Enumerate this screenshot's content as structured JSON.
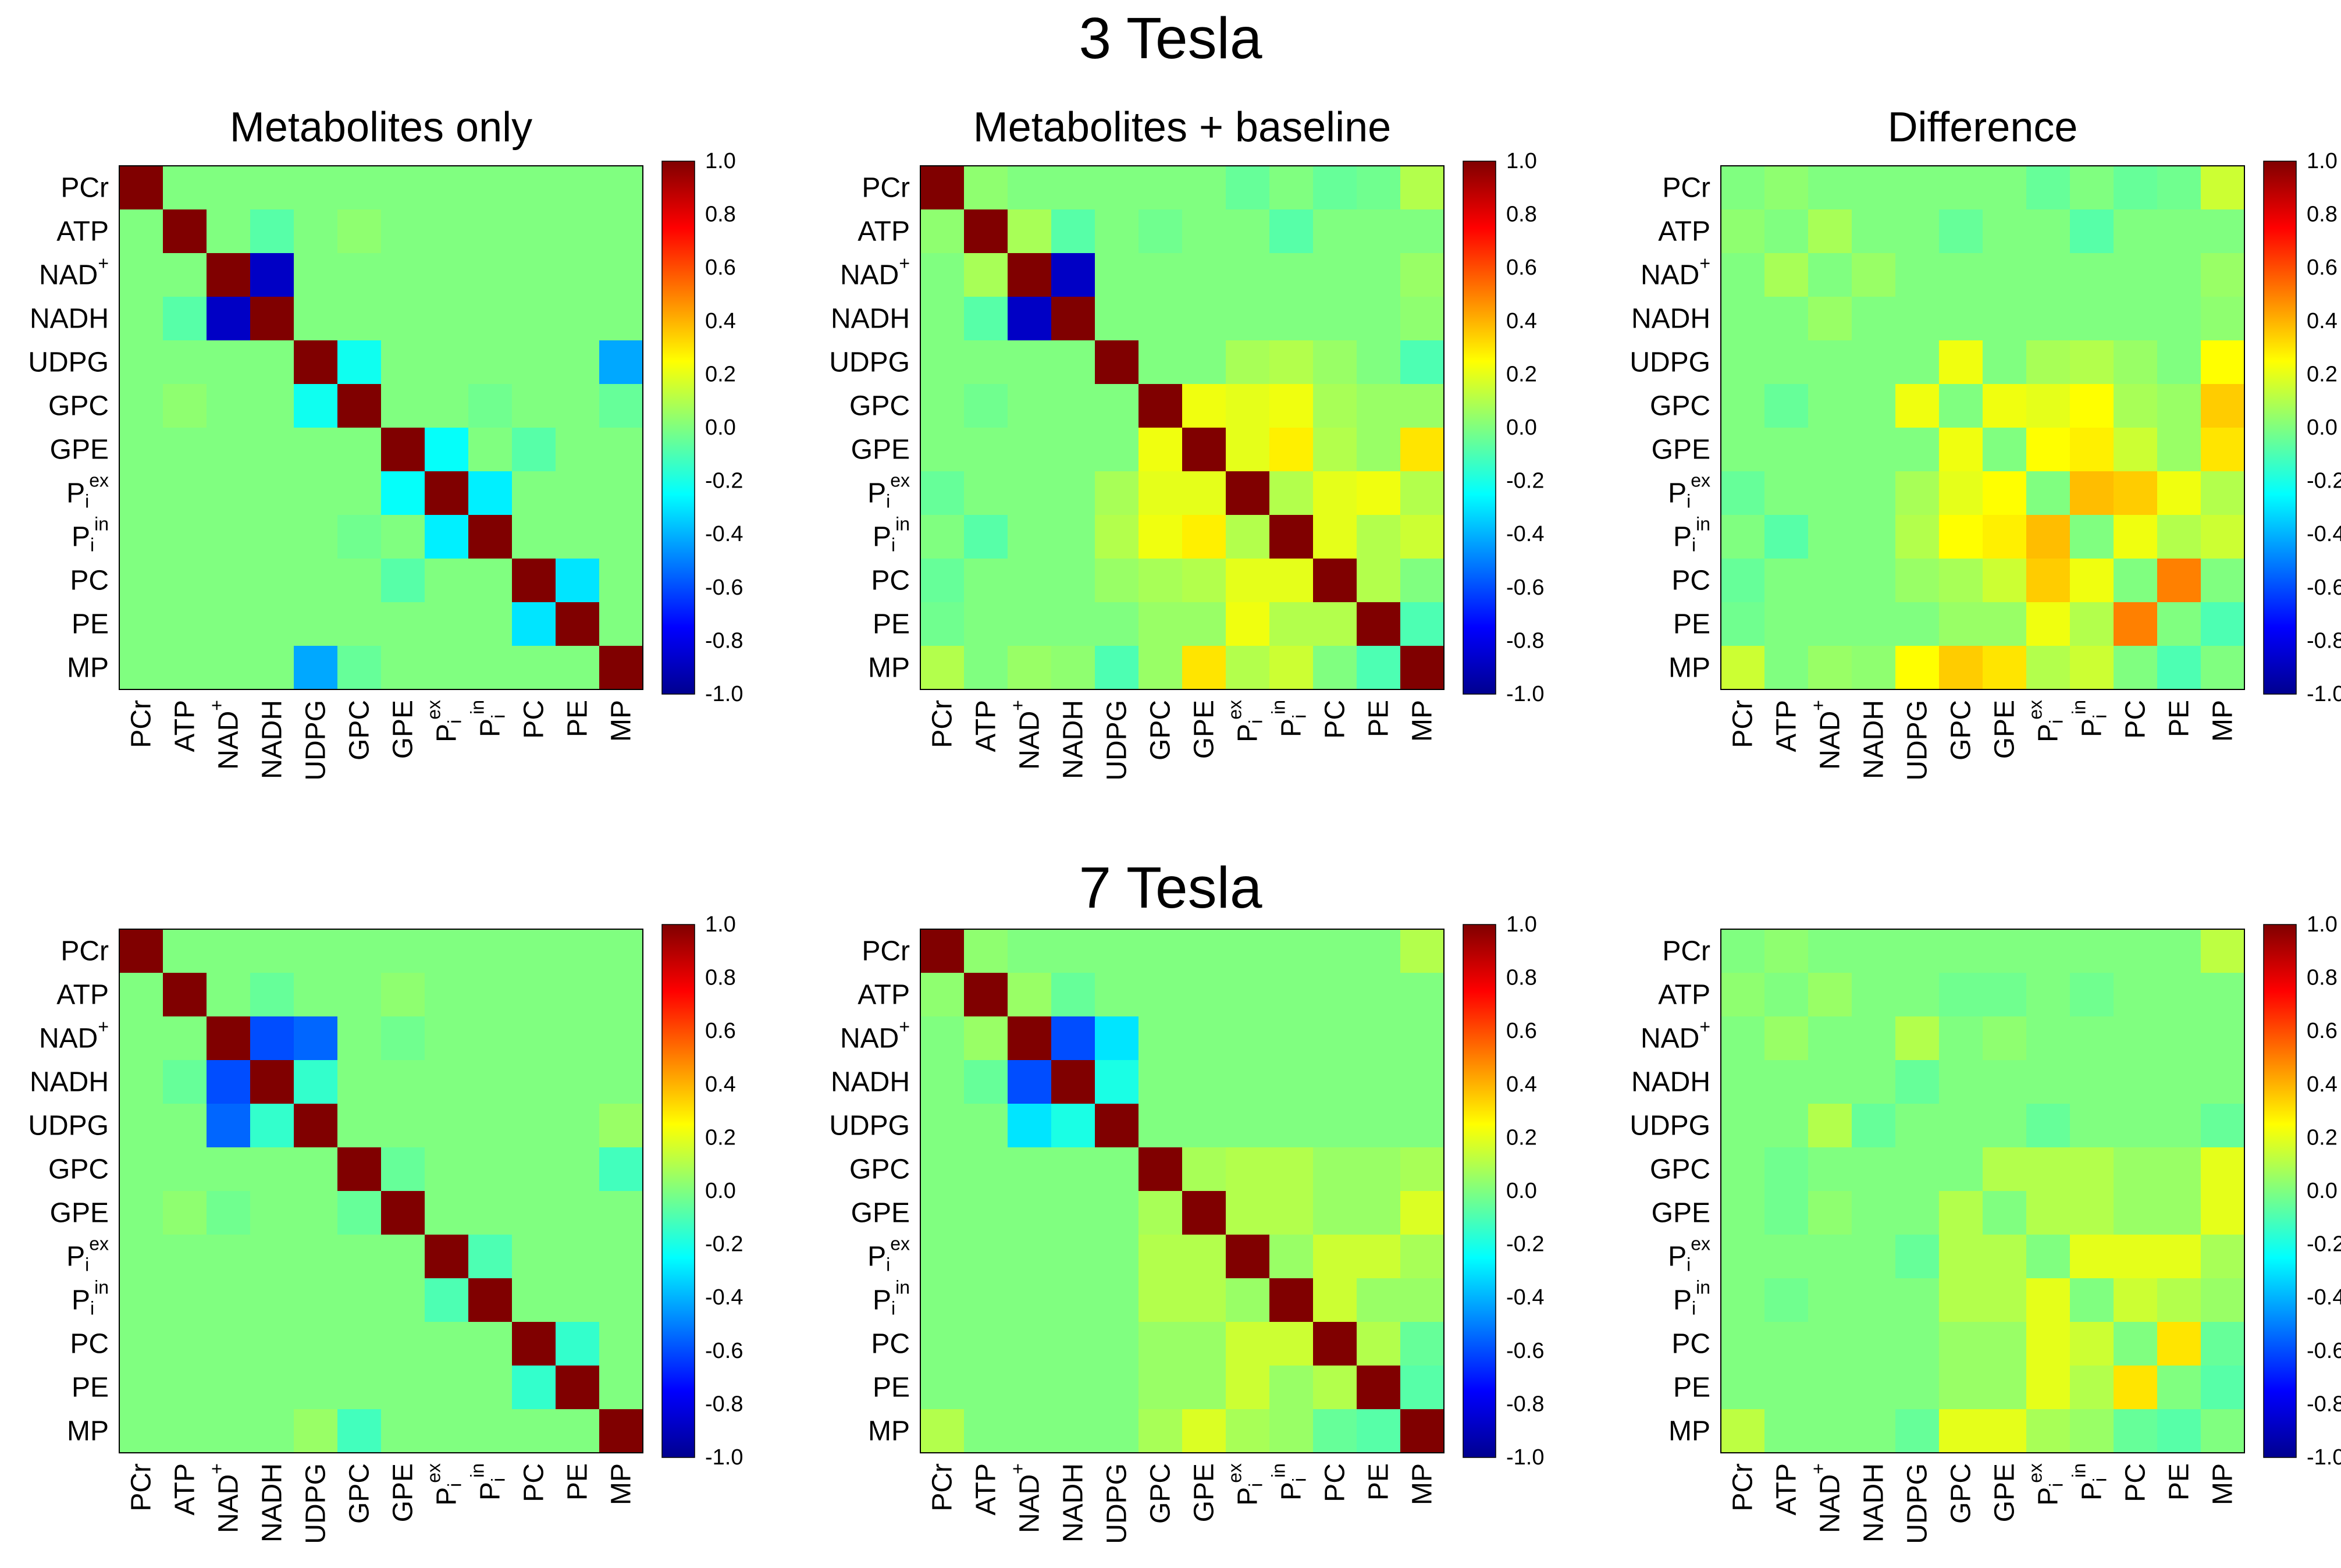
{
  "figure": {
    "row_titles": [
      "3 Tesla",
      "7 Tesla"
    ],
    "colorbar_ticks": [
      "1.0",
      "0.8",
      "0.6",
      "0.4",
      "0.2",
      "0.0",
      "-0.2",
      "-0.4",
      "-0.6",
      "-0.8",
      "-1.0"
    ],
    "colormap": {
      "name": "jet",
      "stops": [
        "#00008f",
        "#0000ff",
        "#00ffff",
        "#ffff00",
        "#ff0000",
        "#800000"
      ]
    }
  },
  "chart_data": [
    {
      "type": "heatmap",
      "title": "Metabolites only",
      "row_title": "3 Tesla",
      "vmin": -1.0,
      "vmax": 1.0,
      "labels": [
        "PCr",
        "ATP",
        "NAD+",
        "NADH",
        "UDPG",
        "GPC",
        "GPE",
        "Pi ex",
        "Pi in",
        "PC",
        "PE",
        "MP"
      ],
      "values": [
        [
          1,
          0,
          0,
          0,
          0,
          0,
          0,
          0,
          0,
          0,
          0,
          0
        ],
        [
          0,
          1,
          0,
          -0.08,
          0,
          0.03,
          0,
          0,
          0,
          0,
          0,
          0
        ],
        [
          0,
          0,
          1,
          -0.88,
          0,
          0,
          0,
          0,
          0,
          0,
          0,
          0
        ],
        [
          0,
          -0.08,
          -0.88,
          1,
          0,
          0,
          0,
          0,
          0,
          0,
          0,
          0
        ],
        [
          0,
          0,
          0,
          0,
          1,
          -0.22,
          0,
          0,
          0,
          0,
          0,
          -0.42
        ],
        [
          0,
          0.03,
          0,
          0,
          -0.22,
          1,
          0,
          0,
          -0.03,
          0,
          0,
          -0.05
        ],
        [
          0,
          0,
          0,
          0,
          0,
          0,
          1,
          -0.24,
          0,
          -0.08,
          0,
          0
        ],
        [
          0,
          0,
          0,
          0,
          0,
          0,
          -0.24,
          1,
          -0.28,
          0,
          0,
          0
        ],
        [
          0,
          0,
          0,
          0,
          0,
          -0.03,
          0,
          -0.28,
          1,
          0,
          0,
          0
        ],
        [
          0,
          0,
          0,
          0,
          0,
          0,
          -0.08,
          0,
          0,
          1,
          -0.3,
          0
        ],
        [
          0,
          0,
          0,
          0,
          0,
          0,
          0,
          0,
          0,
          -0.3,
          1,
          0
        ],
        [
          0,
          0,
          0,
          0,
          -0.42,
          -0.05,
          0,
          0,
          0,
          0,
          0,
          1
        ]
      ]
    },
    {
      "type": "heatmap",
      "title": "Metabolites + baseline",
      "row_title": "3 Tesla",
      "vmin": -1.0,
      "vmax": 1.0,
      "labels": [
        "PCr",
        "ATP",
        "NAD+",
        "NADH",
        "UDPG",
        "GPC",
        "GPE",
        "Pi ex",
        "Pi in",
        "PC",
        "PE",
        "MP"
      ],
      "values": [
        [
          1,
          0.03,
          0,
          0,
          0,
          0,
          0,
          -0.05,
          0,
          -0.05,
          -0.03,
          0.1
        ],
        [
          0.03,
          1,
          0.08,
          -0.08,
          0,
          -0.03,
          0,
          0,
          -0.08,
          0,
          0,
          0
        ],
        [
          0,
          0.08,
          1,
          -0.88,
          0,
          0,
          0,
          0,
          0,
          0,
          0,
          0.05
        ],
        [
          0,
          -0.08,
          -0.88,
          1,
          0,
          0,
          0,
          0,
          0,
          0,
          0,
          0.03
        ],
        [
          0,
          0,
          0,
          0,
          1,
          0,
          0,
          0.08,
          0.1,
          0.05,
          0,
          -0.1
        ],
        [
          0,
          -0.03,
          0,
          0,
          0,
          1,
          0.22,
          0.2,
          0.22,
          0.08,
          0.05,
          0.05
        ],
        [
          0,
          0,
          0,
          0,
          0,
          0.22,
          1,
          0.2,
          0.28,
          0.1,
          0.05,
          0.3
        ],
        [
          -0.05,
          0,
          0,
          0,
          0.08,
          0.2,
          0.2,
          1,
          0.1,
          0.2,
          0.22,
          0.1
        ],
        [
          0,
          -0.08,
          0,
          0,
          0.1,
          0.22,
          0.28,
          0.1,
          1,
          0.2,
          0.1,
          0.15
        ],
        [
          -0.05,
          0,
          0,
          0,
          0.05,
          0.08,
          0.1,
          0.2,
          0.2,
          1,
          0.1,
          0
        ],
        [
          -0.03,
          0,
          0,
          0,
          0,
          0.05,
          0.05,
          0.22,
          0.1,
          0.1,
          1,
          -0.1
        ],
        [
          0.1,
          0,
          0.05,
          0.03,
          -0.1,
          0.05,
          0.3,
          0.1,
          0.15,
          0,
          -0.1,
          1
        ]
      ]
    },
    {
      "type": "heatmap",
      "title": "Difference",
      "row_title": "3 Tesla",
      "vmin": -1.0,
      "vmax": 1.0,
      "labels": [
        "PCr",
        "ATP",
        "NAD+",
        "NADH",
        "UDPG",
        "GPC",
        "GPE",
        "Pi ex",
        "Pi in",
        "PC",
        "PE",
        "MP"
      ],
      "values": [
        [
          0,
          0.03,
          0,
          0,
          0,
          0,
          0,
          -0.05,
          0,
          -0.05,
          -0.03,
          0.15
        ],
        [
          0.03,
          0,
          0.08,
          0,
          0,
          -0.05,
          0,
          0,
          -0.08,
          0,
          0,
          0
        ],
        [
          0,
          0.08,
          0,
          0.05,
          0,
          0,
          0,
          0,
          0,
          0,
          0,
          0.05
        ],
        [
          0,
          0,
          0.05,
          0,
          0,
          0,
          0,
          0,
          0,
          0,
          0,
          0.03
        ],
        [
          0,
          0,
          0,
          0,
          0,
          0.22,
          0,
          0.08,
          0.1,
          0.05,
          0,
          0.25
        ],
        [
          0,
          -0.05,
          0,
          0,
          0.22,
          0,
          0.22,
          0.2,
          0.25,
          0.08,
          0.05,
          0.35
        ],
        [
          0,
          0,
          0,
          0,
          0,
          0.22,
          0,
          0.25,
          0.28,
          0.15,
          0.05,
          0.3
        ],
        [
          -0.05,
          0,
          0,
          0,
          0.08,
          0.2,
          0.25,
          0,
          0.38,
          0.35,
          0.22,
          0.1
        ],
        [
          0,
          -0.08,
          0,
          0,
          0.1,
          0.25,
          0.28,
          0.38,
          0,
          0.22,
          0.1,
          0.15
        ],
        [
          -0.05,
          0,
          0,
          0,
          0.05,
          0.08,
          0.15,
          0.35,
          0.22,
          0,
          0.5,
          0
        ],
        [
          -0.03,
          0,
          0,
          0,
          0,
          0.05,
          0.05,
          0.22,
          0.1,
          0.5,
          0,
          -0.1
        ],
        [
          0.15,
          0,
          0.05,
          0.03,
          0.25,
          0.35,
          0.3,
          0.1,
          0.15,
          0,
          -0.1,
          0
        ]
      ]
    },
    {
      "type": "heatmap",
      "title": "",
      "row_title": "7 Tesla",
      "vmin": -1.0,
      "vmax": 1.0,
      "labels": [
        "PCr",
        "ATP",
        "NAD+",
        "NADH",
        "UDPG",
        "GPC",
        "GPE",
        "Pi ex",
        "Pi in",
        "PC",
        "PE",
        "MP"
      ],
      "values": [
        [
          1,
          0,
          0,
          0,
          0,
          0,
          0,
          0,
          0,
          0,
          0,
          0
        ],
        [
          0,
          1,
          0,
          -0.05,
          0,
          0,
          0.03,
          0,
          0,
          0,
          0,
          0
        ],
        [
          0,
          0,
          1,
          -0.6,
          -0.55,
          0,
          -0.03,
          0,
          0,
          0,
          0,
          0
        ],
        [
          0,
          -0.05,
          -0.6,
          1,
          -0.15,
          0,
          0,
          0,
          0,
          0,
          0,
          0
        ],
        [
          0,
          0,
          -0.55,
          -0.15,
          1,
          0,
          0,
          0,
          0,
          0,
          0,
          0.05
        ],
        [
          0,
          0,
          0,
          0,
          0,
          1,
          -0.05,
          0,
          0,
          0,
          0,
          -0.12
        ],
        [
          0,
          0.03,
          -0.03,
          0,
          0,
          -0.05,
          1,
          0,
          0,
          0,
          0,
          0
        ],
        [
          0,
          0,
          0,
          0,
          0,
          0,
          0,
          1,
          -0.1,
          0,
          0,
          0
        ],
        [
          0,
          0,
          0,
          0,
          0,
          0,
          0,
          -0.1,
          1,
          0,
          0,
          0
        ],
        [
          0,
          0,
          0,
          0,
          0,
          0,
          0,
          0,
          0,
          1,
          -0.15,
          0
        ],
        [
          0,
          0,
          0,
          0,
          0,
          0,
          0,
          0,
          0,
          -0.15,
          1,
          0
        ],
        [
          0,
          0,
          0,
          0,
          0.05,
          -0.12,
          0,
          0,
          0,
          0,
          0,
          1
        ]
      ]
    },
    {
      "type": "heatmap",
      "title": "",
      "row_title": "7 Tesla",
      "vmin": -1.0,
      "vmax": 1.0,
      "labels": [
        "PCr",
        "ATP",
        "NAD+",
        "NADH",
        "UDPG",
        "GPC",
        "GPE",
        "Pi ex",
        "Pi in",
        "PC",
        "PE",
        "MP"
      ],
      "values": [
        [
          1,
          0.03,
          0,
          0,
          0,
          0,
          0,
          0,
          0,
          0,
          0,
          0.1
        ],
        [
          0.03,
          1,
          0.05,
          -0.05,
          0,
          0,
          0,
          0,
          0,
          0,
          0,
          0
        ],
        [
          0,
          0.05,
          1,
          -0.6,
          -0.3,
          0,
          0,
          0,
          0,
          0,
          0,
          0
        ],
        [
          0,
          -0.05,
          -0.6,
          1,
          -0.2,
          0,
          0,
          0,
          0,
          0,
          0,
          0
        ],
        [
          0,
          0,
          -0.3,
          -0.2,
          1,
          0,
          0,
          0,
          0,
          0,
          0,
          0
        ],
        [
          0,
          0,
          0,
          0,
          0,
          1,
          0.08,
          0.1,
          0.1,
          0.05,
          0.05,
          0.08
        ],
        [
          0,
          0,
          0,
          0,
          0,
          0.08,
          1,
          0.1,
          0.1,
          0.05,
          0.05,
          0.18
        ],
        [
          0,
          0,
          0,
          0,
          0,
          0.1,
          0.1,
          1,
          0.05,
          0.15,
          0.15,
          0.08
        ],
        [
          0,
          0,
          0,
          0,
          0,
          0.1,
          0.1,
          0.05,
          1,
          0.15,
          0.05,
          0.05
        ],
        [
          0,
          0,
          0,
          0,
          0,
          0.05,
          0.05,
          0.15,
          0.15,
          1,
          0.1,
          -0.05
        ],
        [
          0,
          0,
          0,
          0,
          0,
          0.05,
          0.05,
          0.15,
          0.05,
          0.1,
          1,
          -0.08
        ],
        [
          0.1,
          0,
          0,
          0,
          0,
          0.08,
          0.18,
          0.08,
          0.05,
          -0.05,
          -0.08,
          1
        ]
      ]
    },
    {
      "type": "heatmap",
      "title": "",
      "row_title": "7 Tesla",
      "vmin": -1.0,
      "vmax": 1.0,
      "labels": [
        "PCr",
        "ATP",
        "NAD+",
        "NADH",
        "UDPG",
        "GPC",
        "GPE",
        "Pi ex",
        "Pi in",
        "PC",
        "PE",
        "MP"
      ],
      "values": [
        [
          0,
          0.03,
          0,
          0,
          0,
          0,
          0,
          0,
          0,
          0,
          0,
          0.12
        ],
        [
          0.03,
          0,
          0.05,
          0,
          0,
          -0.03,
          -0.03,
          0,
          -0.03,
          0,
          0,
          0
        ],
        [
          0,
          0.05,
          0,
          0,
          0.1,
          0,
          0.03,
          0,
          0,
          0,
          0,
          0
        ],
        [
          0,
          0,
          0,
          0,
          -0.05,
          0,
          0,
          0,
          0,
          0,
          0,
          0
        ],
        [
          0,
          0,
          0.1,
          -0.05,
          0,
          0,
          0,
          -0.05,
          0,
          0,
          0,
          -0.05
        ],
        [
          0,
          -0.03,
          0,
          0,
          0,
          0,
          0.1,
          0.1,
          0.1,
          0.05,
          0.05,
          0.2
        ],
        [
          0,
          -0.03,
          0.03,
          0,
          0,
          0.1,
          0,
          0.1,
          0.1,
          0.05,
          0.05,
          0.2
        ],
        [
          0,
          0,
          0,
          0,
          -0.05,
          0.1,
          0.1,
          0,
          0.2,
          0.2,
          0.2,
          0.08
        ],
        [
          0,
          -0.03,
          0,
          0,
          0,
          0.1,
          0.1,
          0.2,
          0,
          0.15,
          0.1,
          0.05
        ],
        [
          0,
          0,
          0,
          0,
          0,
          0.05,
          0.05,
          0.2,
          0.15,
          0,
          0.3,
          -0.05
        ],
        [
          0,
          0,
          0,
          0,
          0,
          0.05,
          0.05,
          0.2,
          0.1,
          0.3,
          0,
          -0.08
        ],
        [
          0.12,
          0,
          0,
          0,
          -0.05,
          0.2,
          0.2,
          0.08,
          0.05,
          -0.05,
          -0.08,
          0
        ]
      ]
    }
  ]
}
